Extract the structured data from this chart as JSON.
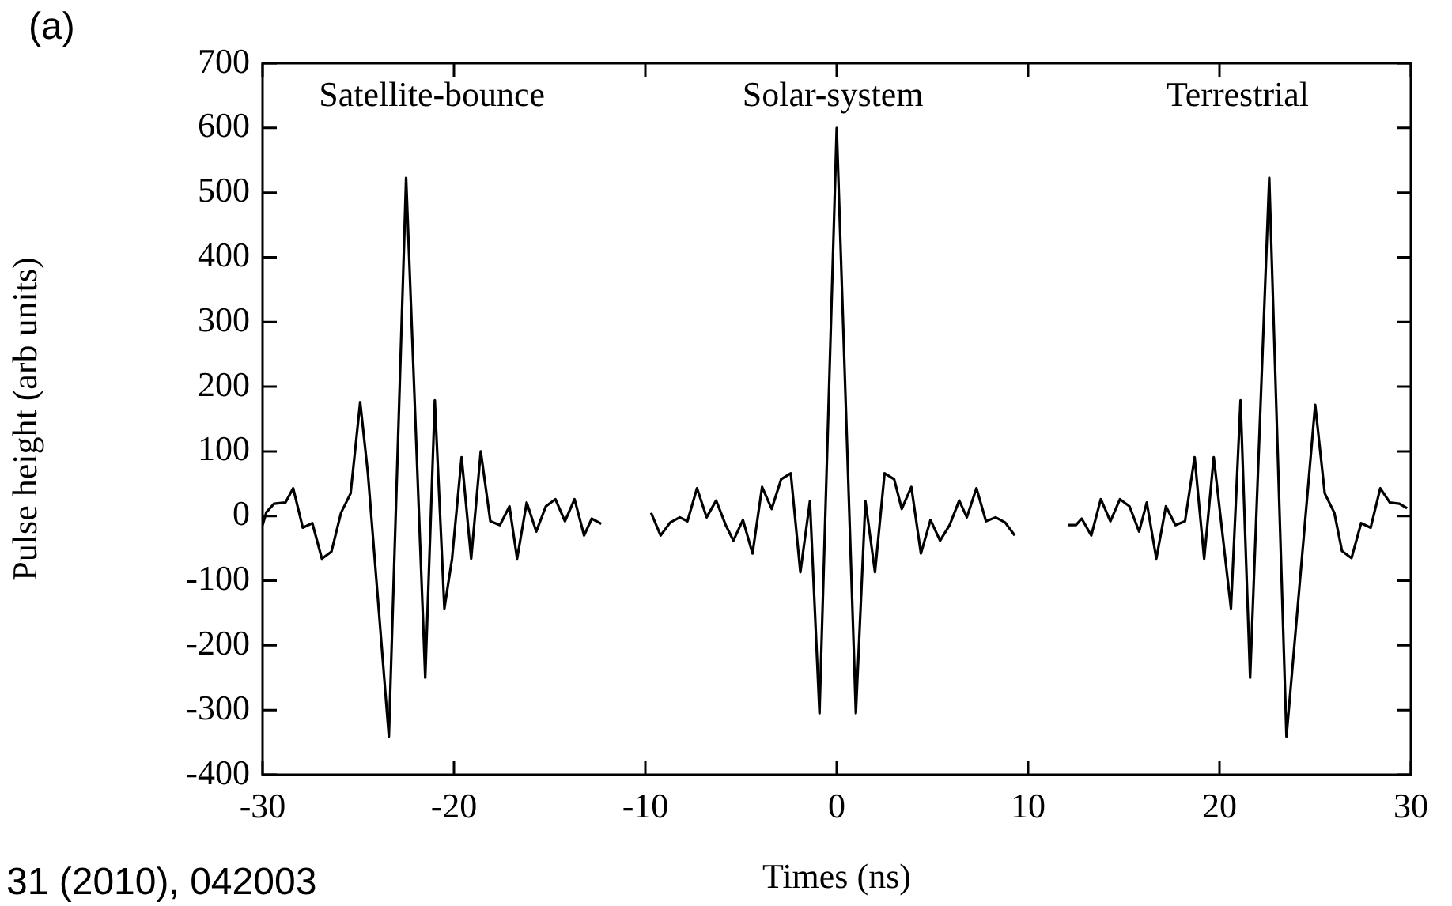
{
  "chart_data": {
    "type": "line",
    "xlabel": "Times (ns)",
    "ylabel": "Pulse height (arb units)",
    "annotations": [
      "(a)",
      "31 (2010), 042003"
    ],
    "xlim": [
      -30,
      30
    ],
    "xticks": [
      -30,
      -20,
      -10,
      0,
      10,
      20,
      30
    ],
    "ylim": [
      -400,
      700
    ],
    "yticks": [
      -400,
      -300,
      -200,
      -100,
      0,
      100,
      200,
      300,
      400,
      500,
      600,
      700
    ],
    "grid": false,
    "legend": "top",
    "marker": "none",
    "line_style": "solid",
    "series": [
      {
        "name": "Satellite-bounce",
        "color": "#000000",
        "x": [
          -30,
          -29.8,
          -29.4,
          -28.8,
          -28.4,
          -27.9,
          -27.4,
          -26.9,
          -26.4,
          -25.9,
          -25.4,
          -24.9,
          -24.5,
          -23.4,
          -22.5,
          -21.5,
          -21.0,
          -20.5,
          -20.1,
          -19.6,
          -19.1,
          -18.6,
          -18.1,
          -17.6,
          -17.1,
          -16.7,
          -16.2,
          -15.7,
          -15.2,
          -14.7,
          -14.2,
          -13.7,
          -13.2,
          -12.8,
          -12.3
        ],
        "values": [
          -14,
          6,
          19,
          21,
          43,
          -18,
          -11,
          -66,
          -55,
          5,
          35,
          176,
          67,
          -341,
          523,
          -250,
          179,
          -143,
          -66,
          91,
          -66,
          100,
          -8,
          -14,
          15,
          -66,
          21,
          -24,
          15,
          26,
          -8,
          26,
          -30,
          -4,
          -12
        ]
      },
      {
        "name": "Solar-system",
        "color": "#000000",
        "x": [
          -9.7,
          -9.2,
          -8.7,
          -8.2,
          -7.8,
          -7.3,
          -6.8,
          -6.3,
          -5.8,
          -5.4,
          -4.9,
          -4.4,
          -3.9,
          -3.4,
          -2.9,
          -2.4,
          -1.9,
          -1.4,
          -0.9,
          0,
          1.0,
          1.5,
          2.0,
          2.5,
          3.0,
          3.4,
          3.9,
          4.4,
          4.9,
          5.4,
          5.9,
          6.4,
          6.8,
          7.3,
          7.8,
          8.3,
          8.8,
          9.3
        ],
        "values": [
          5,
          -30,
          -10,
          -2,
          -8,
          43,
          -2,
          24,
          -14,
          -38,
          -6,
          -58,
          45,
          11,
          57,
          66,
          -87,
          23,
          -305,
          600,
          -305,
          23,
          -87,
          66,
          57,
          11,
          45,
          -58,
          -6,
          -38,
          -14,
          24,
          -2,
          43,
          -8,
          -2,
          -10,
          -30
        ]
      },
      {
        "name": "Terrestrial",
        "color": "#000000",
        "x": [
          12.1,
          12.5,
          12.8,
          13.3,
          13.8,
          14.3,
          14.8,
          15.3,
          15.8,
          16.2,
          16.7,
          17.2,
          17.7,
          18.2,
          18.7,
          19.2,
          19.7,
          20.6,
          21.1,
          21.6,
          22.6,
          23.5,
          25.0,
          25.5,
          26.0,
          26.4,
          26.9,
          27.4,
          27.9,
          28.4,
          28.9,
          29.4,
          29.8
        ],
        "values": [
          -14,
          -14,
          -4,
          -30,
          26,
          -8,
          26,
          15,
          -24,
          21,
          -66,
          15,
          -14,
          -8,
          91,
          -66,
          91,
          -143,
          179,
          -250,
          523,
          -341,
          172,
          35,
          5,
          -54,
          -65,
          -11,
          -18,
          43,
          21,
          19,
          12
        ]
      }
    ]
  }
}
